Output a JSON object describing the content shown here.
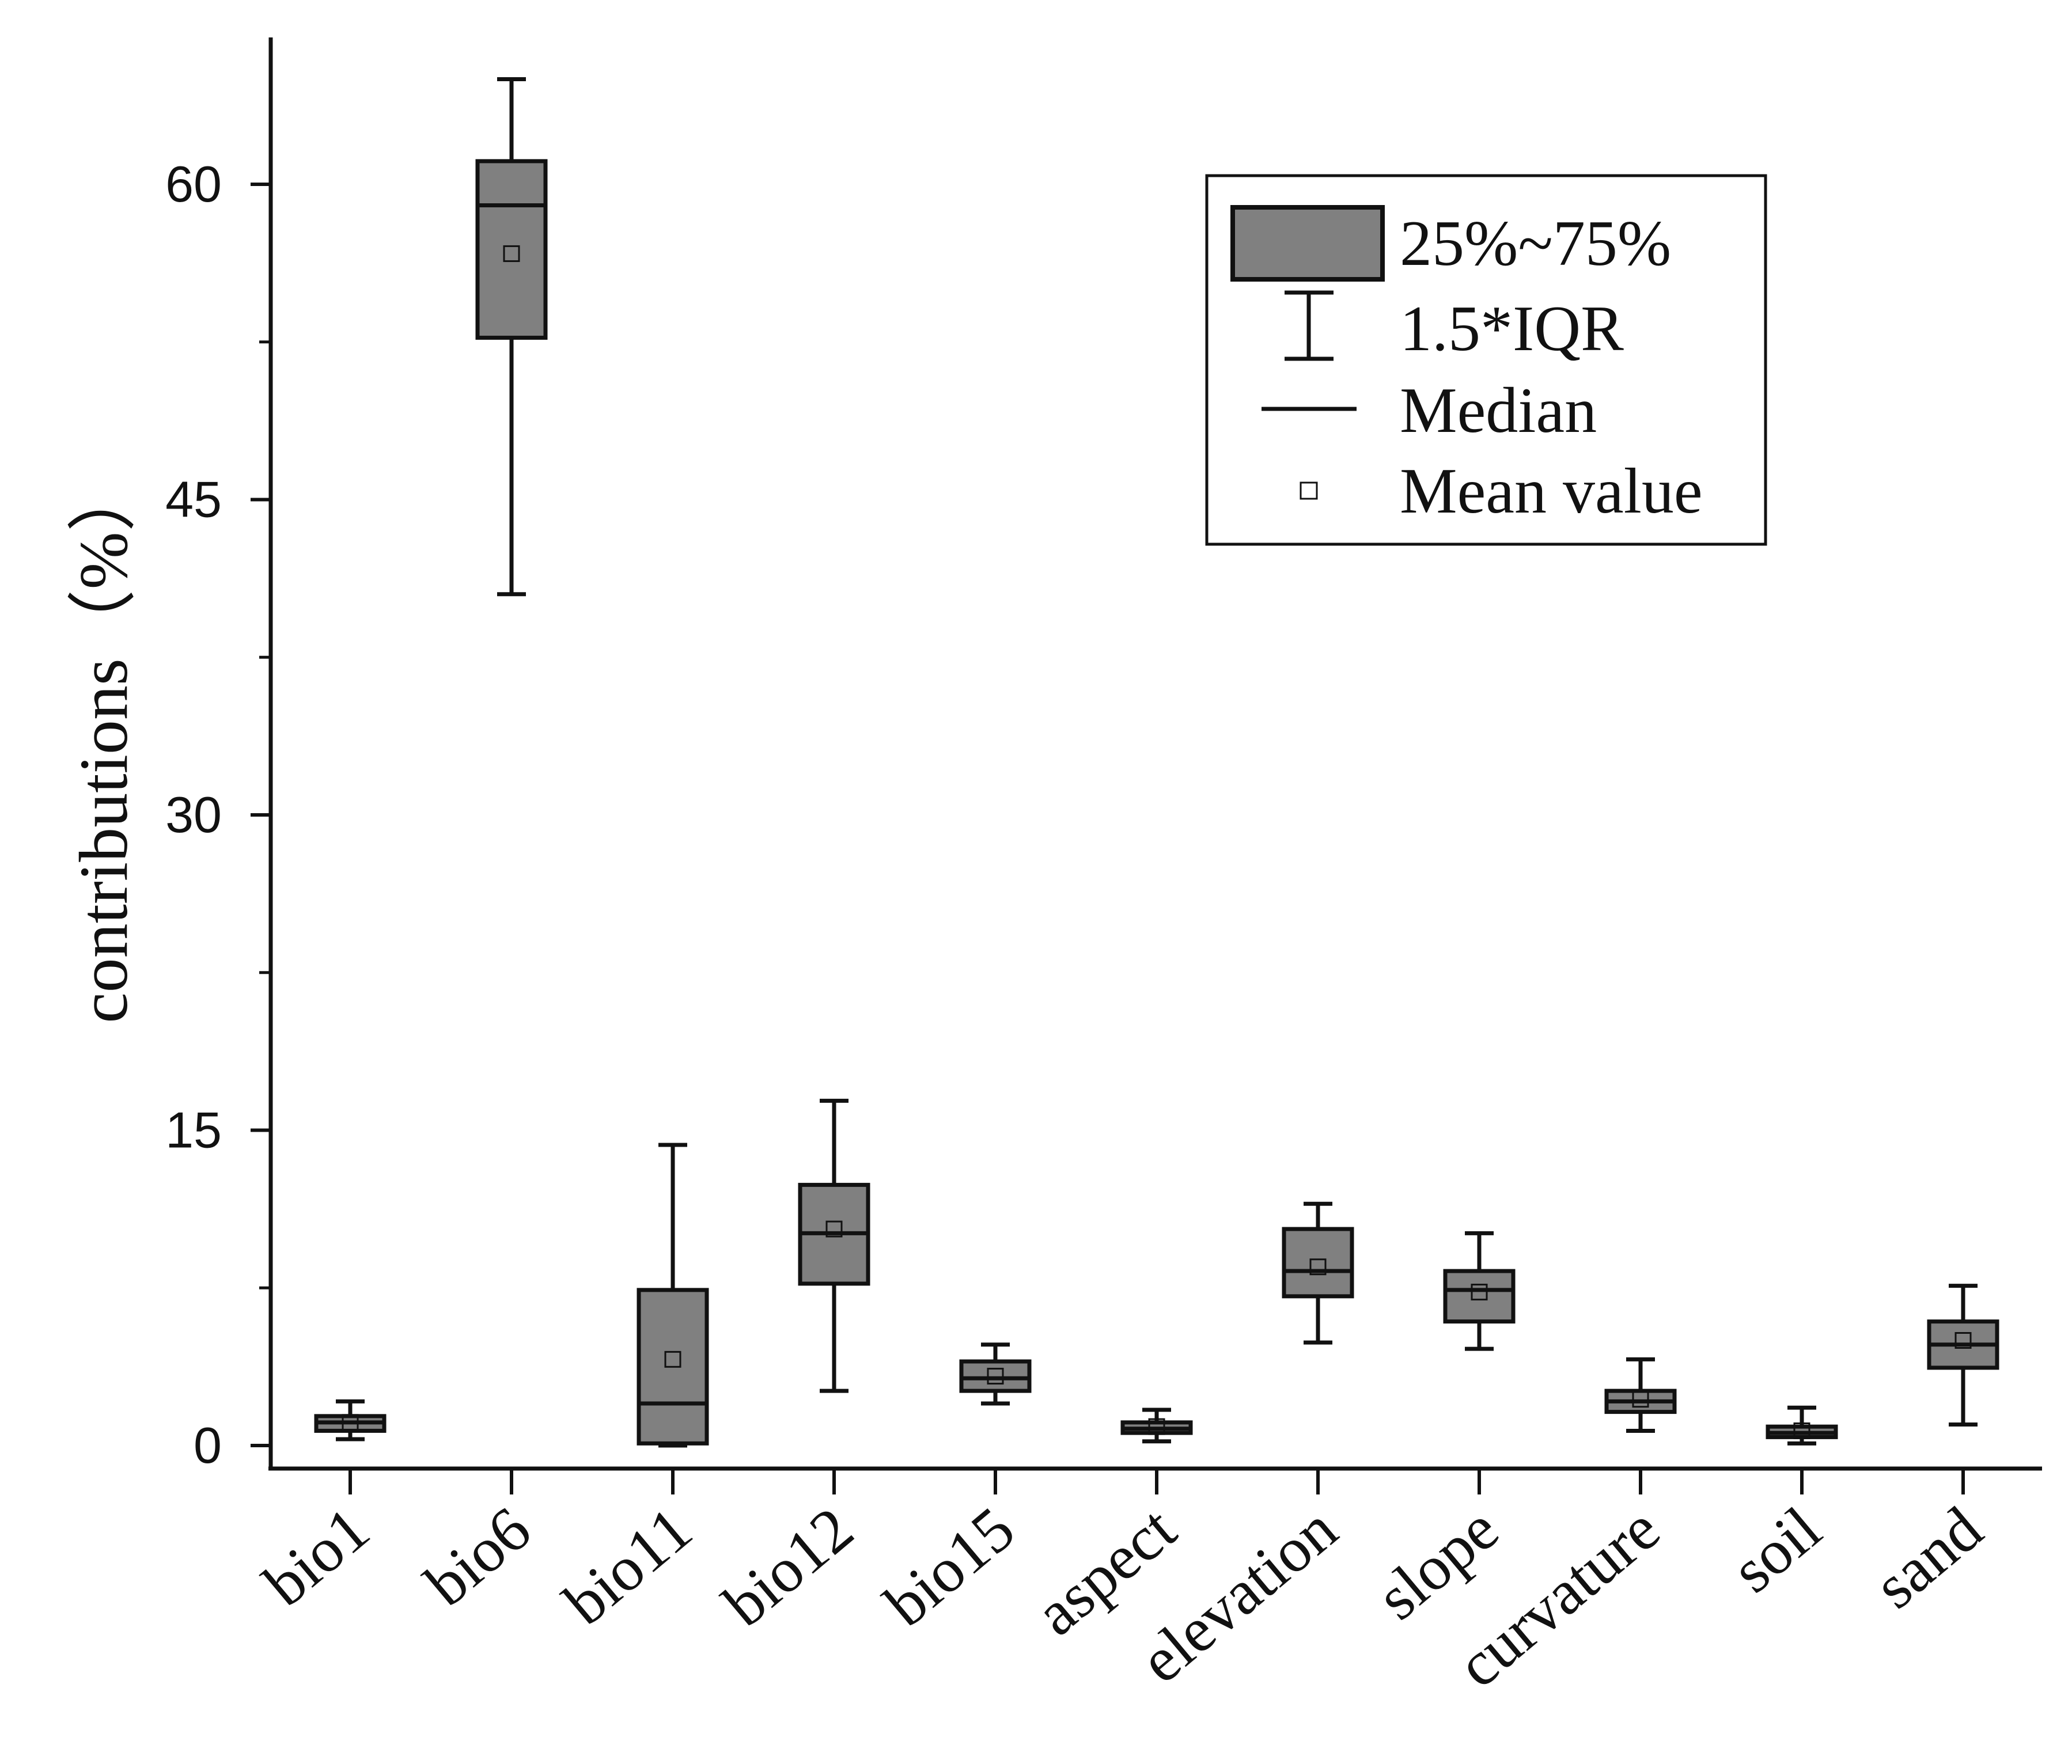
{
  "chart_data": {
    "type": "box",
    "title": "",
    "xlabel": "",
    "ylabel": "contributions（%）",
    "ylim": [
      -1,
      67
    ],
    "yticks": [
      0,
      15,
      30,
      45,
      60
    ],
    "grid": false,
    "legend_position": "top-right",
    "box_fill": "#808080",
    "categories": [
      "bio1",
      "bio6",
      "bio11",
      "bio12",
      "bio15",
      "aspect",
      "elevation",
      "slope",
      "curvature",
      "soil",
      "sand"
    ],
    "series": [
      {
        "name": "bio1",
        "whisker_low": 0.3,
        "q1": 0.7,
        "median": 1.1,
        "q3": 1.4,
        "whisker_high": 2.1,
        "mean": 1.1
      },
      {
        "name": "bio6",
        "whisker_low": 40.5,
        "q1": 52.7,
        "median": 59.0,
        "q3": 61.1,
        "whisker_high": 65.0,
        "mean": 56.7
      },
      {
        "name": "bio11",
        "whisker_low": 0.0,
        "q1": 0.1,
        "median": 2.0,
        "q3": 7.4,
        "whisker_high": 14.3,
        "mean": 4.1
      },
      {
        "name": "bio12",
        "whisker_low": 2.6,
        "q1": 7.7,
        "median": 10.1,
        "q3": 12.4,
        "whisker_high": 16.4,
        "mean": 10.3
      },
      {
        "name": "bio15",
        "whisker_low": 2.0,
        "q1": 2.6,
        "median": 3.2,
        "q3": 4.0,
        "whisker_high": 4.8,
        "mean": 3.3
      },
      {
        "name": "aspect",
        "whisker_low": 0.2,
        "q1": 0.6,
        "median": 0.8,
        "q3": 1.1,
        "whisker_high": 1.7,
        "mean": 0.9
      },
      {
        "name": "elevation",
        "whisker_low": 4.9,
        "q1": 7.1,
        "median": 8.3,
        "q3": 10.3,
        "whisker_high": 11.5,
        "mean": 8.5
      },
      {
        "name": "slope",
        "whisker_low": 4.6,
        "q1": 5.9,
        "median": 7.4,
        "q3": 8.3,
        "whisker_high": 10.1,
        "mean": 7.3
      },
      {
        "name": "curvature",
        "whisker_low": 0.7,
        "q1": 1.6,
        "median": 2.1,
        "q3": 2.6,
        "whisker_high": 4.1,
        "mean": 2.2
      },
      {
        "name": "soil",
        "whisker_low": 0.1,
        "q1": 0.4,
        "median": 0.6,
        "q3": 0.9,
        "whisker_high": 1.8,
        "mean": 0.7
      },
      {
        "name": "sand",
        "whisker_low": 1.0,
        "q1": 3.7,
        "median": 4.8,
        "q3": 5.9,
        "whisker_high": 7.6,
        "mean": 5.0
      }
    ],
    "legend": {
      "box_label": "25%~75%",
      "whisker_label": "1.5*IQR",
      "median_label": "Median",
      "mean_label": "Mean value"
    }
  }
}
